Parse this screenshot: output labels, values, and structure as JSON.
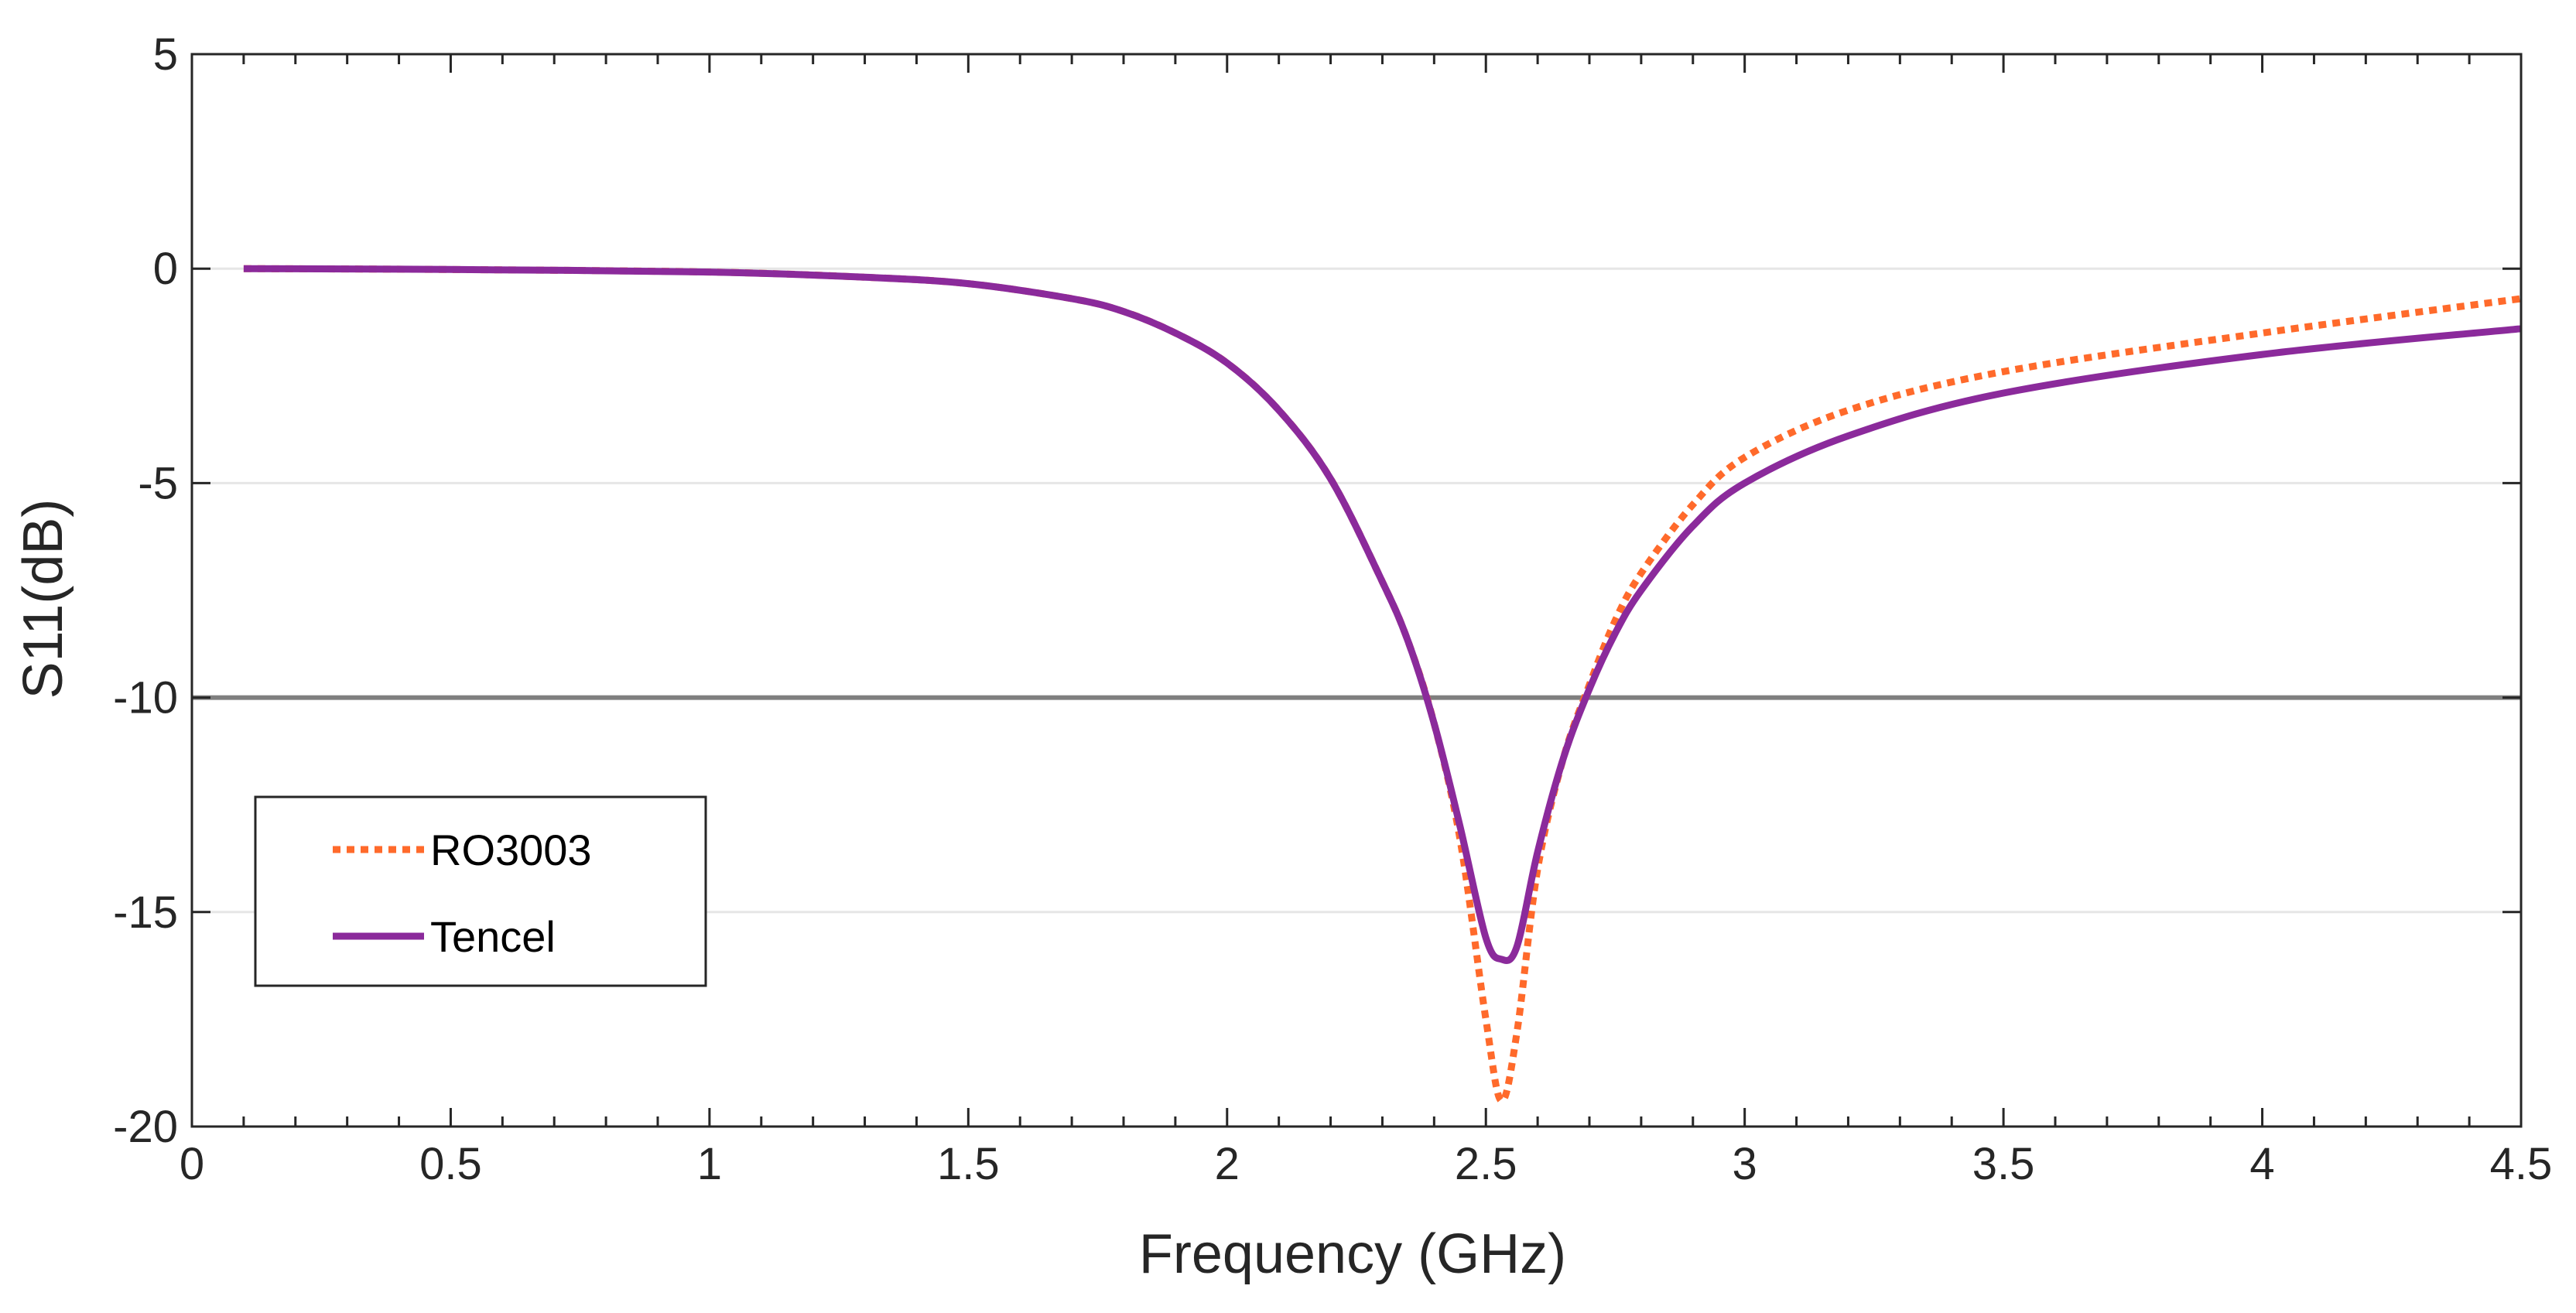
{
  "chart_data": {
    "type": "line",
    "title": "",
    "xlabel": "Frequency (GHz)",
    "ylabel": "S11(dB)",
    "xlim": [
      0,
      4.5
    ],
    "ylim": [
      -20,
      5
    ],
    "xticks": [
      0,
      0.5,
      1,
      1.5,
      2,
      2.5,
      3,
      3.5,
      4,
      4.5
    ],
    "xtick_labels": [
      "0",
      "0.5",
      "1",
      "1.5",
      "2",
      "2.5",
      "3",
      "3.5",
      "4",
      "4.5"
    ],
    "yticks": [
      5,
      0,
      -5,
      -10,
      -15,
      -20
    ],
    "ytick_labels": [
      "5",
      "0",
      "-5",
      "-10",
      "-15",
      "-20"
    ],
    "grid": "horizontal",
    "reference_line": {
      "y": -10,
      "color": "#7f7f7f"
    },
    "legend_position": "bottom-left",
    "series": [
      {
        "name": "RO3003",
        "style": "dotted",
        "color": "#ff6a2b",
        "x": [
          0.1,
          0.5,
          1.0,
          1.3,
          1.5,
          1.7,
          1.8,
          1.9,
          2.0,
          2.1,
          2.2,
          2.3,
          2.35,
          2.4,
          2.45,
          2.5,
          2.53,
          2.56,
          2.6,
          2.65,
          2.7,
          2.75,
          2.8,
          2.9,
          3.0,
          3.2,
          3.5,
          4.0,
          4.5
        ],
        "y": [
          0,
          -0.02,
          -0.08,
          -0.2,
          -0.35,
          -0.7,
          -1.0,
          -1.5,
          -2.2,
          -3.3,
          -4.9,
          -7.3,
          -8.7,
          -10.6,
          -13.3,
          -17.5,
          -19.4,
          -17.8,
          -14.0,
          -11.4,
          -9.7,
          -8.2,
          -7.1,
          -5.5,
          -4.4,
          -3.3,
          -2.4,
          -1.5,
          -0.7
        ]
      },
      {
        "name": "Tencel",
        "style": "solid",
        "color": "#8b2a9b",
        "x": [
          0.1,
          0.5,
          1.0,
          1.3,
          1.5,
          1.7,
          1.8,
          1.9,
          2.0,
          2.1,
          2.2,
          2.3,
          2.35,
          2.4,
          2.45,
          2.5,
          2.53,
          2.56,
          2.6,
          2.65,
          2.7,
          2.75,
          2.8,
          2.9,
          3.0,
          3.2,
          3.5,
          4.0,
          4.5
        ],
        "y": [
          0,
          -0.02,
          -0.08,
          -0.2,
          -0.35,
          -0.7,
          -1.0,
          -1.5,
          -2.2,
          -3.3,
          -4.9,
          -7.3,
          -8.7,
          -10.6,
          -13.0,
          -15.6,
          -16.1,
          -15.8,
          -13.6,
          -11.4,
          -9.8,
          -8.5,
          -7.5,
          -6.0,
          -5.0,
          -3.9,
          -2.9,
          -2.0,
          -1.4
        ]
      }
    ]
  }
}
